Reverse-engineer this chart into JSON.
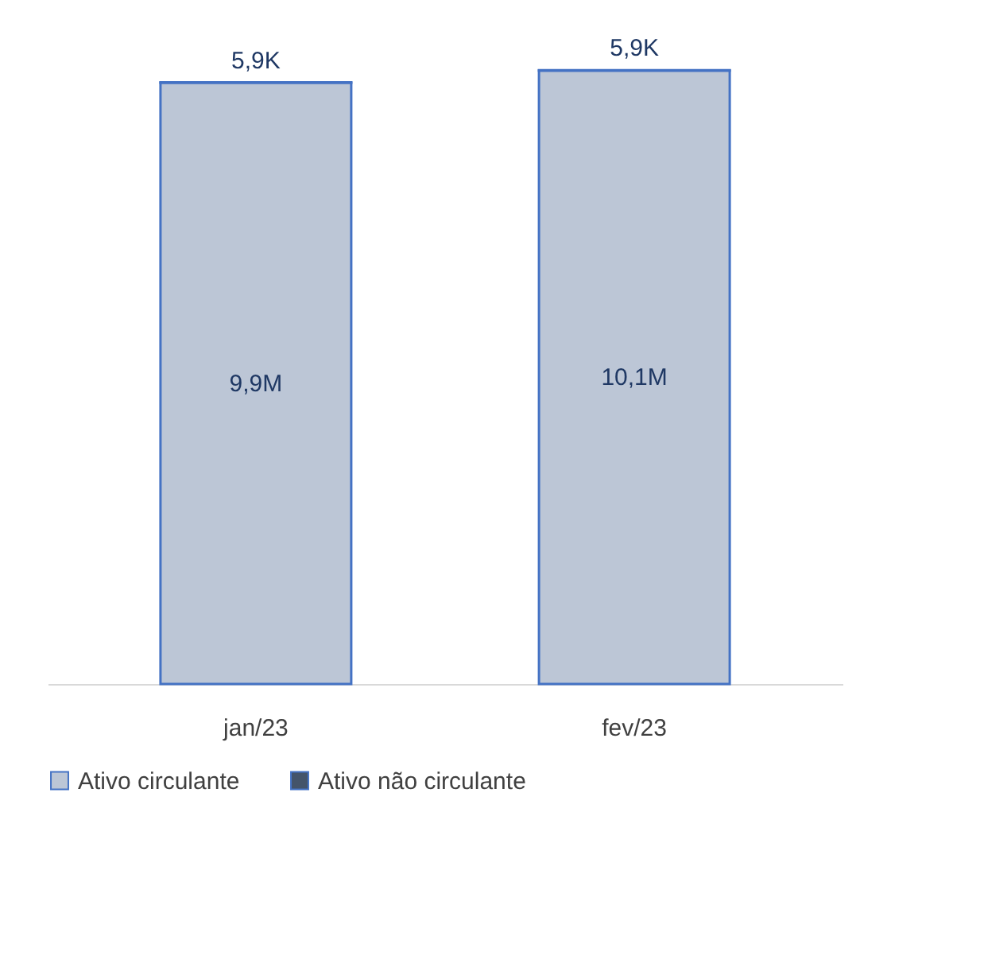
{
  "chart_data": {
    "type": "bar",
    "stacked": true,
    "categories": [
      "jan/23",
      "fev/23"
    ],
    "series": [
      {
        "name": "Ativo circulante",
        "color": "#bcc6d6",
        "values": [
          9900000,
          10100000
        ],
        "value_labels": [
          "9,9M",
          "10,1M"
        ]
      },
      {
        "name": "Ativo não circulante",
        "color": "#44546a",
        "values": [
          5900,
          5900
        ],
        "value_labels": [
          "5,9K",
          "5,9K"
        ]
      }
    ],
    "legend": "bottom",
    "tick_labels": "x"
  }
}
